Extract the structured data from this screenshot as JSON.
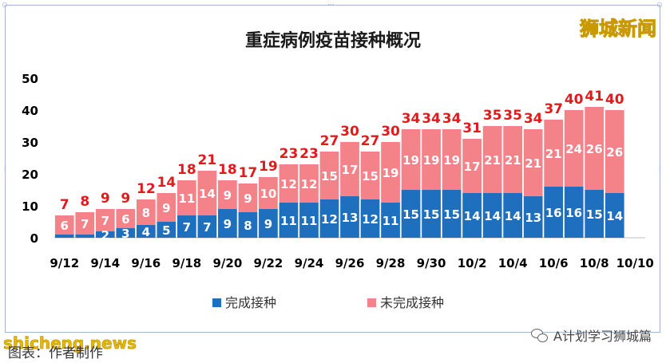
{
  "watermark": "狮城新闻",
  "site_watermark": "shicheng.news",
  "caption": "图表：作者制作",
  "account_name": "A计划学习狮城篇",
  "account_icon": "wechat-icon",
  "colors": {
    "completed": "#1f6fbf",
    "not_completed": "#f48289",
    "total_label": "#e11b1b",
    "in_bar_label": "#ffffff"
  },
  "chart_data": {
    "type": "bar",
    "stacked": true,
    "title": "重症病例疫苗接种概况",
    "categories": [
      "9/12",
      "9/13",
      "9/14",
      "9/15",
      "9/16",
      "9/17",
      "9/18",
      "9/19",
      "9/20",
      "9/21",
      "9/22",
      "9/23",
      "9/24",
      "9/25",
      "9/26",
      "9/27",
      "9/28",
      "9/29",
      "9/30",
      "10/1",
      "10/2",
      "10/3",
      "10/4",
      "10/5",
      "10/6",
      "10/7",
      "10/8",
      "10/9",
      "10/10"
    ],
    "x_tick_labels": [
      "9/12",
      "9/14",
      "9/16",
      "9/18",
      "9/20",
      "9/22",
      "9/24",
      "9/26",
      "9/28",
      "9/30",
      "10/2",
      "10/4",
      "10/6",
      "10/8",
      "10/10"
    ],
    "series": [
      {
        "name": "完成接种",
        "values": [
          1,
          1,
          2,
          3,
          4,
          5,
          7,
          7,
          9,
          8,
          9,
          11,
          11,
          12,
          13,
          12,
          11,
          15,
          15,
          15,
          14,
          14,
          14,
          13,
          16,
          16,
          15,
          14,
          null
        ]
      },
      {
        "name": "未完成接种",
        "values": [
          6,
          7,
          7,
          6,
          8,
          9,
          11,
          14,
          9,
          9,
          10,
          12,
          12,
          15,
          17,
          15,
          19,
          19,
          19,
          19,
          17,
          21,
          21,
          21,
          21,
          24,
          26,
          26,
          null
        ]
      }
    ],
    "totals": [
      7,
      8,
      9,
      9,
      12,
      14,
      18,
      21,
      18,
      17,
      19,
      23,
      23,
      27,
      30,
      27,
      30,
      34,
      34,
      34,
      31,
      35,
      35,
      34,
      37,
      40,
      41,
      40,
      null
    ],
    "inside_labels_completed": [
      null,
      null,
      "2",
      "3",
      "4",
      "5",
      "7",
      "7",
      "9",
      "8",
      "9",
      "11",
      "11",
      "12",
      "13",
      "12",
      "11",
      "15",
      "15",
      "15",
      "14",
      "14",
      "14",
      "13",
      "16",
      "16",
      "15",
      "14",
      null
    ],
    "y_ticks": [
      "0",
      "10",
      "20",
      "30",
      "40",
      "50"
    ],
    "ylim": [
      0,
      50
    ],
    "legend_position": "bottom"
  }
}
